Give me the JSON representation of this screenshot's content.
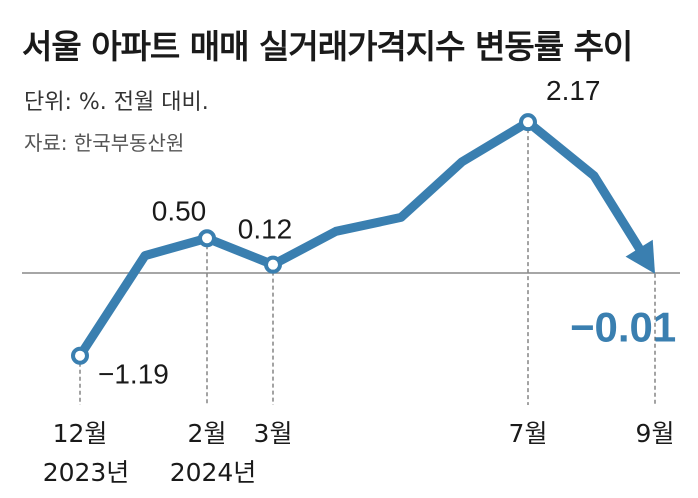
{
  "chart_data": {
    "type": "line",
    "title": "서울 아파트 매매 실거래가격지수 변동률 추이",
    "unit": "단위: %. 전월 대비.",
    "source": "자료: 한국부동산원",
    "x": [
      "2023-12",
      "2024-01",
      "2024-02",
      "2024-03",
      "2024-04",
      "2024-05",
      "2024-06",
      "2024-07",
      "2024-08",
      "2024-09"
    ],
    "values": [
      -1.19,
      0.25,
      0.5,
      0.12,
      0.6,
      0.8,
      1.6,
      2.17,
      1.4,
      -0.01
    ],
    "markers": [
      0,
      2,
      3,
      7
    ],
    "point_labels": [
      {
        "index": 0,
        "text": "−1.19"
      },
      {
        "index": 2,
        "text": "0.50"
      },
      {
        "index": 3,
        "text": "0.12"
      },
      {
        "index": 7,
        "text": "2.17"
      },
      {
        "index": 9,
        "text": "−0.01",
        "highlight": true
      }
    ],
    "x_ticks": [
      {
        "index": 0,
        "month": "12월",
        "year": "2023년"
      },
      {
        "index": 2,
        "month": "2월",
        "year": "2024년"
      },
      {
        "index": 3,
        "month": "3월",
        "year": ""
      },
      {
        "index": 7,
        "month": "7월",
        "year": ""
      },
      {
        "index": 9,
        "month": "9월",
        "year": ""
      }
    ],
    "baseline": 0,
    "ylim": [
      -1.5,
      2.5
    ],
    "colors": {
      "line": "#3a7fb0",
      "highlight": "#3a7fb0",
      "baseline": "#888888",
      "guide": "#666666"
    }
  }
}
